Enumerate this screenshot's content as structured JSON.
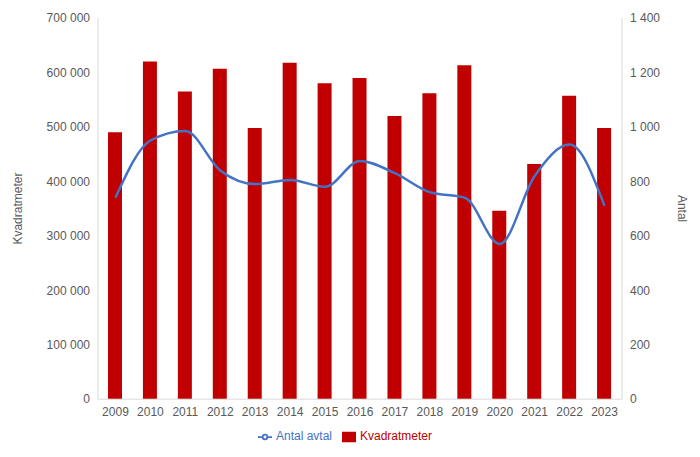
{
  "chart_data": {
    "type": "bar",
    "categories": [
      "2009",
      "2010",
      "2011",
      "2012",
      "2013",
      "2014",
      "2015",
      "2016",
      "2017",
      "2018",
      "2019",
      "2020",
      "2021",
      "2022",
      "2023"
    ],
    "series": [
      {
        "name": "Kvadratmeter",
        "type": "bar",
        "color": "#c00000",
        "values": [
          490000,
          620000,
          565000,
          607000,
          498000,
          618000,
          580000,
          590000,
          520000,
          562000,
          613000,
          346000,
          432000,
          557000,
          498000
        ]
      },
      {
        "name": "Antal avtal",
        "type": "line",
        "axis": "y2",
        "color": "#4472c4",
        "marker": "none",
        "line_style": "solid",
        "values": [
          740,
          950,
          985,
          840,
          790,
          805,
          780,
          875,
          830,
          760,
          740,
          570,
          820,
          935,
          710
        ]
      }
    ],
    "y_label": "Kvadratmeter",
    "y2_label": "Antal",
    "ylim": [
      0,
      700000
    ],
    "yticks": [
      0,
      {
        "value": 100000,
        "label": "100 000"
      },
      {
        "value": 200000,
        "label": "200 000"
      },
      {
        "value": 300000,
        "label": "300 000"
      },
      {
        "value": 400000,
        "label": "400 000"
      },
      {
        "value": 500000,
        "label": "500 000"
      },
      {
        "value": 600000,
        "label": "600 000"
      },
      {
        "value": 700000,
        "label": "700 000"
      }
    ],
    "y2lim": [
      0,
      1400
    ],
    "y2ticks": [
      0,
      200,
      400,
      600,
      800,
      {
        "value": 1000,
        "label": "1 000"
      },
      {
        "value": 1200,
        "label": "1 200"
      },
      {
        "value": 1400,
        "label": "1 400"
      }
    ],
    "grid": false,
    "legend": "bottom"
  }
}
